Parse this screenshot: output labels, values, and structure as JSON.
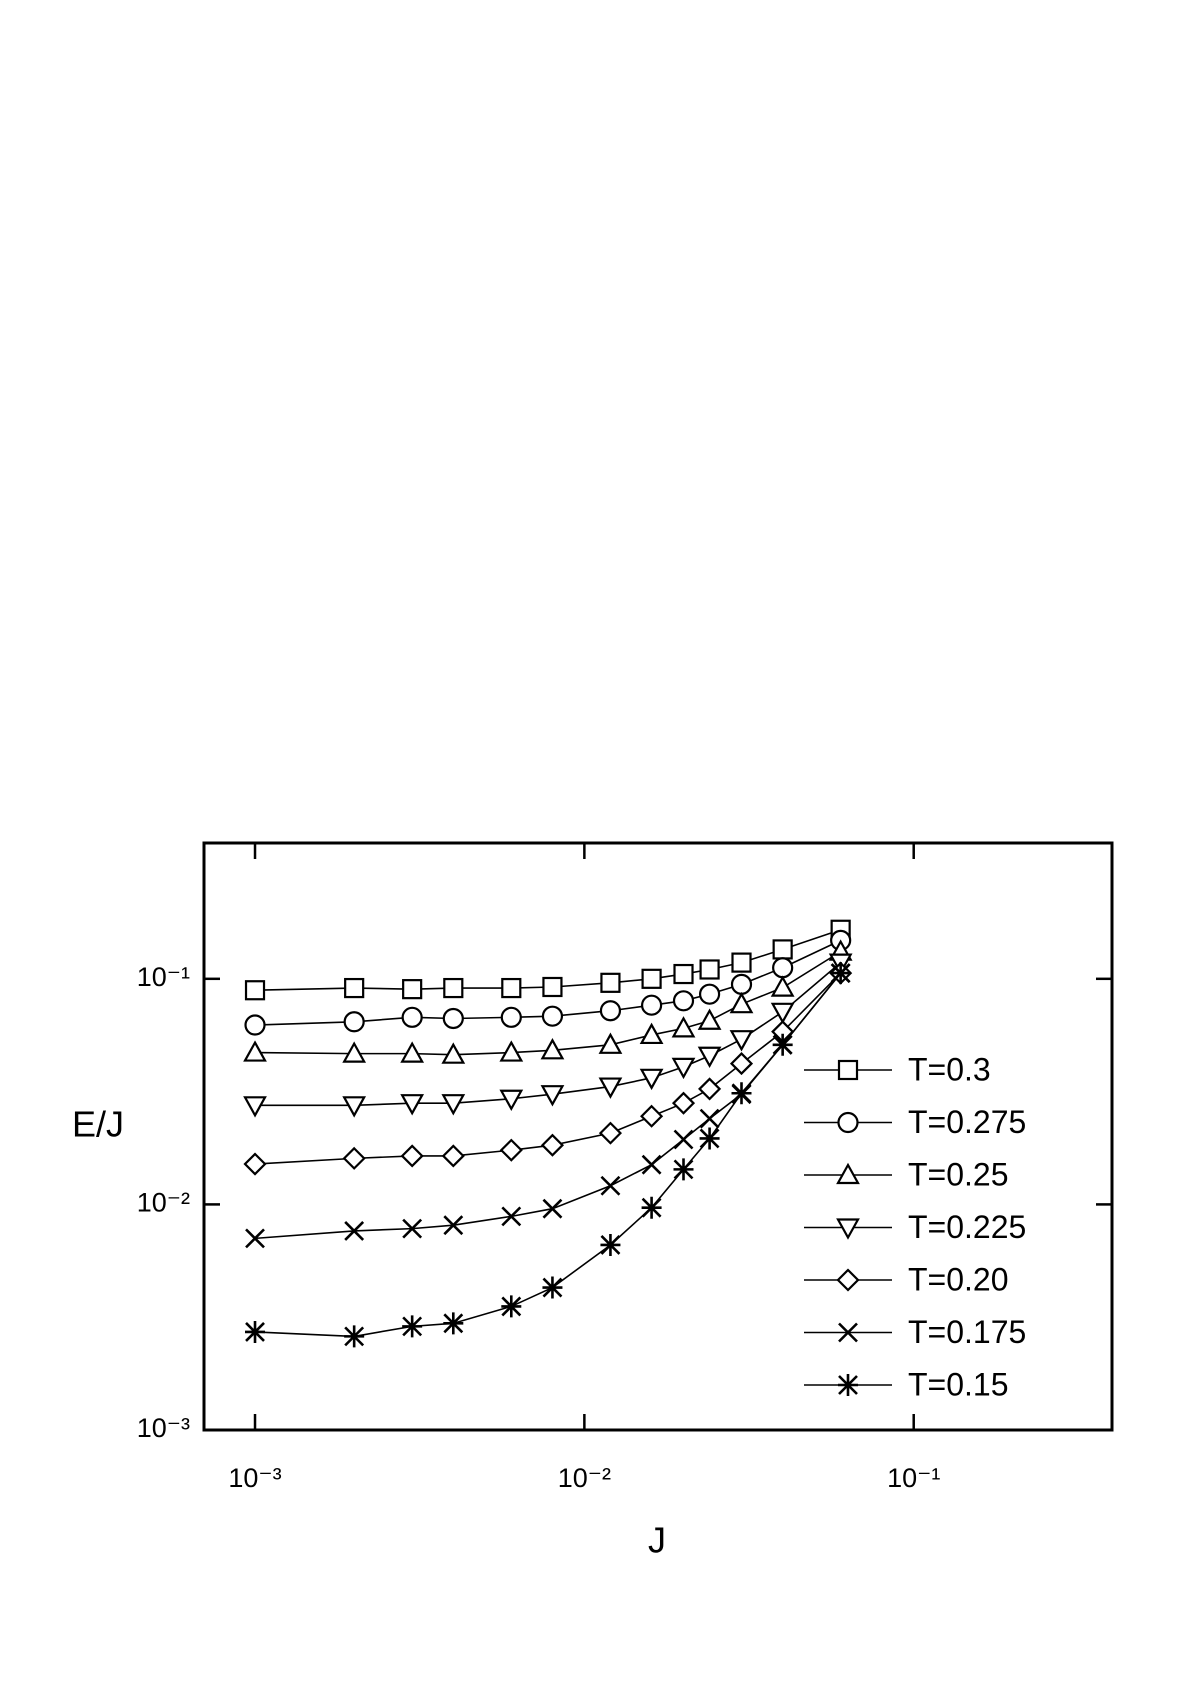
{
  "chart_data": {
    "type": "line",
    "x_label": "J",
    "y_label": "E/J",
    "x_scale": "log",
    "y_scale": "log",
    "xlim": [
      0.0007,
      0.4
    ],
    "ylim": [
      0.001,
      0.4
    ],
    "xticks": [
      {
        "value": 0.001,
        "label": "10⁻³"
      },
      {
        "value": 0.01,
        "label": "10⁻²"
      },
      {
        "value": 0.1,
        "label": "10⁻¹"
      }
    ],
    "yticks": [
      {
        "value": 0.001,
        "label": "10⁻³"
      },
      {
        "value": 0.01,
        "label": "10⁻²"
      },
      {
        "value": 0.1,
        "label": "10⁻¹"
      }
    ],
    "legend": "lower right",
    "x": [
      0.001,
      0.002,
      0.003,
      0.004,
      0.006,
      0.008,
      0.012,
      0.016,
      0.02,
      0.024,
      0.03,
      0.04,
      0.06
    ],
    "series": [
      {
        "name": "T=0.3",
        "color": "#000000",
        "marker": "square",
        "values": [
          0.089,
          0.091,
          0.09,
          0.091,
          0.091,
          0.092,
          0.096,
          0.1,
          0.105,
          0.11,
          0.118,
          0.135,
          0.165
        ]
      },
      {
        "name": "T=0.275",
        "color": "#000000",
        "marker": "circle",
        "values": [
          0.0624,
          0.0645,
          0.0675,
          0.0667,
          0.0675,
          0.0683,
          0.0722,
          0.0764,
          0.0799,
          0.0855,
          0.0945,
          0.112,
          0.148
        ]
      },
      {
        "name": "T=0.25",
        "color": "#000000",
        "marker": "triangle-up",
        "values": [
          0.0471,
          0.0466,
          0.0466,
          0.0461,
          0.0471,
          0.0482,
          0.051,
          0.0564,
          0.0603,
          0.0652,
          0.0772,
          0.0914,
          0.132
        ]
      },
      {
        "name": "T=0.225",
        "color": "#000000",
        "marker": "triangle-down",
        "values": [
          0.0275,
          0.0275,
          0.0281,
          0.0281,
          0.0294,
          0.0308,
          0.0333,
          0.0364,
          0.0407,
          0.0456,
          0.054,
          0.0714,
          0.118
        ]
      },
      {
        "name": "T=0.20",
        "color": "#000000",
        "marker": "diamond",
        "values": [
          0.0151,
          0.016,
          0.0164,
          0.0164,
          0.0174,
          0.0183,
          0.0207,
          0.0246,
          0.0281,
          0.0325,
          0.0421,
          0.0583,
          0.106
        ]
      },
      {
        "name": "T=0.175",
        "color": "#000000",
        "marker": "x",
        "values": [
          0.00707,
          0.00763,
          0.00781,
          0.00809,
          0.00885,
          0.00957,
          0.0121,
          0.015,
          0.0194,
          0.024,
          0.0308,
          0.051,
          0.106
        ]
      },
      {
        "name": "T=0.15",
        "color": "#000000",
        "marker": "asterisk",
        "values": [
          0.00272,
          0.0026,
          0.00288,
          0.00297,
          0.00353,
          0.00428,
          0.00661,
          0.00967,
          0.0143,
          0.0196,
          0.0311,
          0.051,
          0.106
        ]
      }
    ]
  }
}
